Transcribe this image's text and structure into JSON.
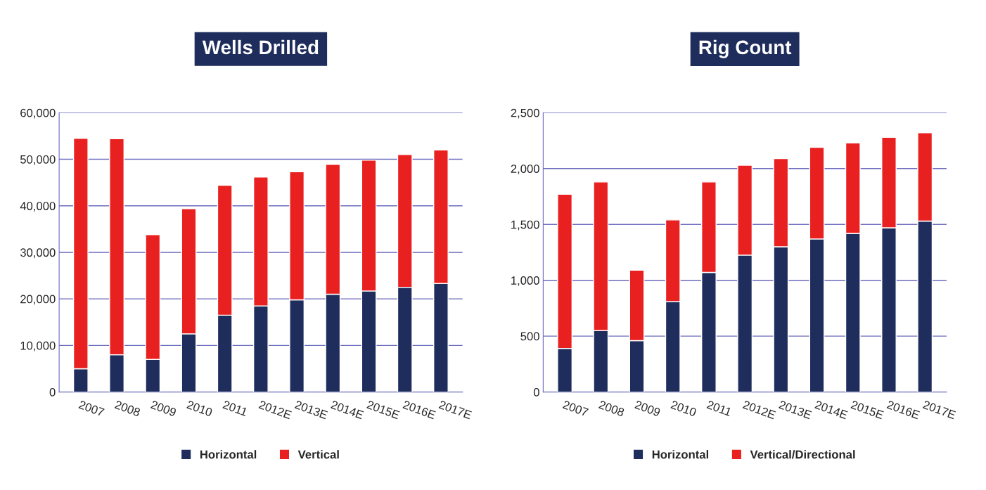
{
  "chart_data": [
    {
      "type": "bar",
      "title": "Wells Drilled",
      "stacked": true,
      "categories": [
        "2007",
        "2008",
        "2009",
        "2010",
        "2011",
        "2012E",
        "2013E",
        "2014E",
        "2015E",
        "2016E",
        "2017E"
      ],
      "series": [
        {
          "name": "Horizontal",
          "color": "#1f2d5c",
          "values": [
            5000,
            8000,
            7000,
            12500,
            16500,
            18500,
            19800,
            21000,
            21700,
            22500,
            23300
          ]
        },
        {
          "name": "Vertical",
          "color": "#e8201f",
          "values": [
            49500,
            46400,
            26800,
            26900,
            27900,
            27700,
            27500,
            27900,
            28100,
            28500,
            28700
          ]
        }
      ],
      "ylim": [
        0,
        60000
      ],
      "yticks": [
        {
          "value": 0,
          "label": "0"
        },
        {
          "value": 10000,
          "label": "10,000"
        },
        {
          "value": 20000,
          "label": "20,000"
        },
        {
          "value": 30000,
          "label": "30,000"
        },
        {
          "value": 40000,
          "label": "40,000"
        },
        {
          "value": 50000,
          "label": "50,000"
        },
        {
          "value": 60000,
          "label": "60,000"
        }
      ],
      "grid": "y",
      "legend": "bottom"
    },
    {
      "type": "bar",
      "title": "Rig Count",
      "stacked": true,
      "categories": [
        "2007",
        "2008",
        "2009",
        "2010",
        "2011",
        "2012E",
        "2013E",
        "2014E",
        "2015E",
        "2016E",
        "2017E"
      ],
      "series": [
        {
          "name": "Horizontal",
          "color": "#1f2d5c",
          "values": [
            390,
            550,
            460,
            810,
            1070,
            1225,
            1300,
            1370,
            1420,
            1470,
            1530
          ]
        },
        {
          "name": "Vertical/Directional",
          "color": "#e8201f",
          "values": [
            1380,
            1330,
            630,
            730,
            810,
            805,
            790,
            820,
            810,
            810,
            790
          ]
        }
      ],
      "ylim": [
        0,
        2500
      ],
      "yticks": [
        {
          "value": 0,
          "label": "0"
        },
        {
          "value": 500,
          "label": "500"
        },
        {
          "value": 1000,
          "label": "1,000"
        },
        {
          "value": 1500,
          "label": "1,500"
        },
        {
          "value": 2000,
          "label": "2,000"
        },
        {
          "value": 2500,
          "label": "2,500"
        }
      ],
      "grid": "y",
      "legend": "bottom"
    }
  ]
}
